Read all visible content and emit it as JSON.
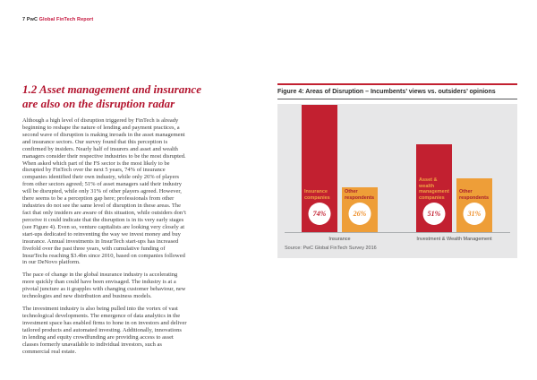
{
  "page": {
    "header": {
      "page_number": "7",
      "brand": "PwC",
      "report_title": "Global FinTech Report"
    }
  },
  "article": {
    "title_line1": "1.2 Asset management and insurance",
    "title_line2": "are also on the disruption radar",
    "paragraphs": [
      "Although a high level of disruption triggered by FinTech is already beginning to reshape the nature of lending and payment practices, a second wave of disruption is making inroads in the asset management and insurance sectors. Our survey found that this perception is confirmed by insiders. Nearly half of insurers and asset and wealth managers consider their respective industries to be the most disrupted. When asked which part of the FS sector is the most likely to be disrupted by FinTech over the next 5 years, 74% of insurance companies identified their own industry, while only 26% of players from other sectors agreed; 51% of asset managers said their industry will be disrupted, while only 31% of other players agreed. However, there seems to be a perception gap here; professionals from other industries do not see the same level of disruption in these areas. The fact that only insiders are aware of this situation, while outsiders don’t perceive it could indicate that the disruption is in its very early stages (see Figure 4). Even so, venture capitalists are looking very closely at start-ups dedicated to reinventing the way we invest money and buy insurance. Annual investments in InsurTech start-ups has increased fivefold over the past three years, with cumulative funding of InsurTechs reaching $3.4bn since 2010, based on companies followed in our DeNovo platform.",
      "The pace of change in the global insurance industry is accelerating more quickly than could have been envisaged. The industry is at a pivotal juncture as it grapples with changing customer behaviour, new technologies and new distribution and business models.",
      "The investment industry is also being pulled into the vortex of vast technological developments. The emergence of data analytics in the investment space has enabled firms to hone in on investors and deliver tailored products and automated investing. Additionally, innovations in lending and equity crowdfunding are providing access to asset classes formerly unavailable to individual investors, such as commercial real estate."
    ]
  },
  "figure": {
    "title": "Figure 4: Areas of Disruption – Incumbents’ views vs. outsiders’ opinions",
    "source": "Source: PwC Global FinTech Survey 2016"
  },
  "chart_data": {
    "type": "bar",
    "title": "Figure 4: Areas of Disruption – Incumbents’ views vs. outsiders’ opinions",
    "unit": "%",
    "ylim": [
      0,
      80
    ],
    "grid": false,
    "legend": "none",
    "categories": [
      "Insurance",
      "Investment & Wealth Management"
    ],
    "colors": {
      "incumbent_red": "#c22030",
      "respondent_orange": "#ee9e38"
    },
    "groups": [
      {
        "category": "Insurance",
        "bars": [
          {
            "label": "Insurance companies",
            "value": 74,
            "bar_color": "#c22030",
            "label_color": "#f0a343",
            "pct_color": "#c22030"
          },
          {
            "label": "Other respondents",
            "value": 26,
            "bar_color": "#ee9e38",
            "label_color": "#a81e2d",
            "pct_color": "#ee8f2a"
          }
        ]
      },
      {
        "category": "Investment & Wealth Management",
        "bars": [
          {
            "label": "Asset & wealth management companies",
            "value": 51,
            "bar_color": "#c22030",
            "label_color": "#f0a343",
            "pct_color": "#c22030"
          },
          {
            "label": "Other respondents",
            "value": 31,
            "bar_color": "#ee9e38",
            "label_color": "#a81e2d",
            "pct_color": "#ee8f2a"
          }
        ]
      }
    ],
    "source": "Source: PwC Global FinTech Survey 2016"
  }
}
